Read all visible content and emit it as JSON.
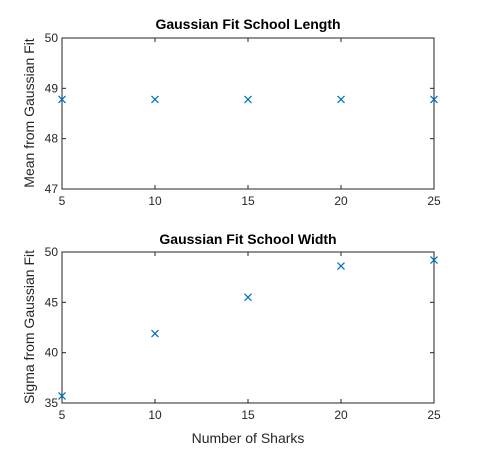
{
  "chart_data": [
    {
      "type": "scatter",
      "title": "Gaussian Fit School Length",
      "xlabel": "",
      "ylabel": "Mean from Gaussian Fit",
      "xlim": [
        5,
        25
      ],
      "ylim": [
        47,
        50
      ],
      "xticks": [
        5,
        10,
        15,
        20,
        25
      ],
      "yticks": [
        47,
        48,
        49,
        50
      ],
      "marker": "x",
      "color": "#0072BD",
      "x": [
        5,
        10,
        15,
        20,
        25
      ],
      "y": [
        48.78,
        48.78,
        48.78,
        48.78,
        48.78
      ]
    },
    {
      "type": "scatter",
      "title": "Gaussian Fit School Width",
      "xlabel": "Number of Sharks",
      "ylabel": "Sigma from Gaussian Fit",
      "xlim": [
        5,
        25
      ],
      "ylim": [
        35,
        50
      ],
      "xticks": [
        5,
        10,
        15,
        20,
        25
      ],
      "yticks": [
        35,
        40,
        45,
        50
      ],
      "marker": "x",
      "color": "#0072BD",
      "x": [
        5,
        10,
        15,
        20,
        25
      ],
      "y": [
        35.7,
        41.9,
        45.5,
        48.6,
        49.2
      ]
    }
  ]
}
